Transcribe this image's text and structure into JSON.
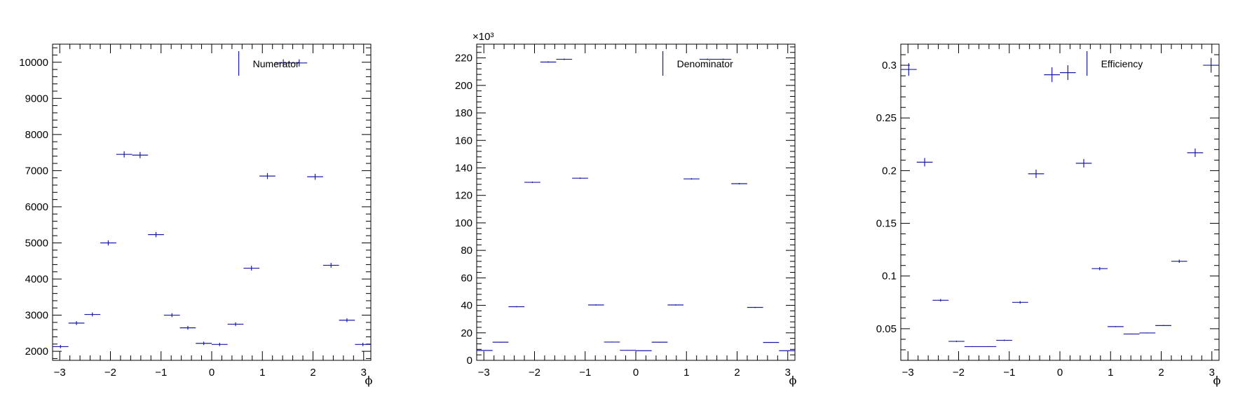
{
  "colors": {
    "marker": "#1a1aa6",
    "axis": "#000000",
    "background": "#ffffff"
  },
  "chart_data": [
    {
      "type": "scatter",
      "name": "numerator-panel",
      "xlabel": "ϕ",
      "ylabel": "",
      "xlim": [
        -3.1416,
        3.1416
      ],
      "ylim": [
        1750,
        10500
      ],
      "x_ticks": [
        -3,
        -2,
        -1,
        0,
        1,
        2,
        3
      ],
      "y_ticks": [
        2000,
        3000,
        4000,
        5000,
        6000,
        7000,
        8000,
        9000,
        10000
      ],
      "y_exponent_label": "",
      "legend": {
        "entries": [
          "Numerator"
        ],
        "placement": "top-right"
      },
      "series": [
        {
          "name": "Numerator",
          "x": [
            -2.985,
            -2.67,
            -2.356,
            -2.042,
            -1.728,
            -1.414,
            -1.1,
            -0.785,
            -0.471,
            -0.157,
            0.157,
            0.471,
            0.785,
            1.1,
            1.414,
            1.728,
            2.042,
            2.356,
            2.67,
            2.985
          ],
          "values": [
            2130,
            2780,
            3020,
            5000,
            7450,
            7430,
            5230,
            3000,
            2650,
            2220,
            2190,
            2750,
            4300,
            6850,
            9980,
            9980,
            6830,
            4380,
            2860,
            2190
          ],
          "x_err": 0.157,
          "y_err": [
            45,
            53,
            55,
            71,
            86,
            86,
            72,
            55,
            51,
            47,
            47,
            52,
            66,
            83,
            100,
            100,
            83,
            66,
            53,
            47
          ]
        }
      ]
    },
    {
      "type": "scatter",
      "name": "denominator-panel",
      "xlabel": "ϕ",
      "ylabel": "",
      "xlim": [
        -3.1416,
        3.1416
      ],
      "ylim": [
        0,
        230
      ],
      "x_ticks": [
        -3,
        -2,
        -1,
        0,
        1,
        2,
        3
      ],
      "y_ticks": [
        0,
        20,
        40,
        60,
        80,
        100,
        120,
        140,
        160,
        180,
        200,
        220
      ],
      "y_exponent_label": "×10³",
      "legend": {
        "entries": [
          "Denominator"
        ],
        "placement": "top-right"
      },
      "series": [
        {
          "name": "Denominator",
          "x": [
            -2.985,
            -2.67,
            -2.356,
            -2.042,
            -1.728,
            -1.414,
            -1.1,
            -0.785,
            -0.471,
            -0.157,
            0.157,
            0.471,
            0.785,
            1.1,
            1.414,
            1.728,
            2.042,
            2.356,
            2.67,
            2.985
          ],
          "values": [
            7.2,
            13.2,
            39.0,
            129.5,
            217.0,
            219.0,
            132.5,
            40.3,
            13.3,
            7.3,
            7.0,
            13.2,
            40.3,
            132.0,
            219.0,
            219.0,
            128.5,
            38.5,
            13.0,
            7.0
          ],
          "x_err": 0.157,
          "y_err": [
            0.2,
            0.3,
            0.4,
            0.5,
            0.5,
            0.5,
            0.5,
            0.4,
            0.3,
            0.2,
            0.2,
            0.3,
            0.4,
            0.5,
            0.5,
            0.5,
            0.5,
            0.4,
            0.3,
            0.2
          ]
        }
      ]
    },
    {
      "type": "scatter",
      "name": "efficiency-panel",
      "xlabel": "ϕ",
      "ylabel": "",
      "xlim": [
        -3.1416,
        3.1416
      ],
      "ylim": [
        0.02,
        0.32
      ],
      "x_ticks": [
        -3,
        -2,
        -1,
        0,
        1,
        2,
        3
      ],
      "y_ticks": [
        0.05,
        0.1,
        0.15,
        0.2,
        0.25,
        0.3
      ],
      "y_tick_labels": [
        "0.05",
        "0.1",
        "0.15",
        "0.2",
        "0.25",
        "0.3"
      ],
      "y_exponent_label": "",
      "legend": {
        "entries": [
          "Efficiency"
        ],
        "placement": "top-right"
      },
      "series": [
        {
          "name": "Efficiency",
          "x": [
            -2.985,
            -2.67,
            -2.356,
            -2.042,
            -1.728,
            -1.414,
            -1.1,
            -0.785,
            -0.471,
            -0.157,
            0.157,
            0.471,
            0.785,
            1.1,
            1.414,
            1.728,
            2.042,
            2.356,
            2.67,
            2.985
          ],
          "values": [
            0.296,
            0.208,
            0.077,
            0.038,
            0.033,
            0.033,
            0.039,
            0.075,
            0.197,
            0.291,
            0.293,
            0.207,
            0.107,
            0.052,
            0.045,
            0.046,
            0.053,
            0.114,
            0.217,
            0.3
          ],
          "x_err": 0.157,
          "y_err": [
            0.006,
            0.004,
            0.0012,
            0.0006,
            0.0004,
            0.0004,
            0.0006,
            0.0012,
            0.004,
            0.007,
            0.007,
            0.004,
            0.0015,
            0.0005,
            0.0004,
            0.0004,
            0.0005,
            0.0015,
            0.004,
            0.007
          ]
        }
      ]
    }
  ]
}
